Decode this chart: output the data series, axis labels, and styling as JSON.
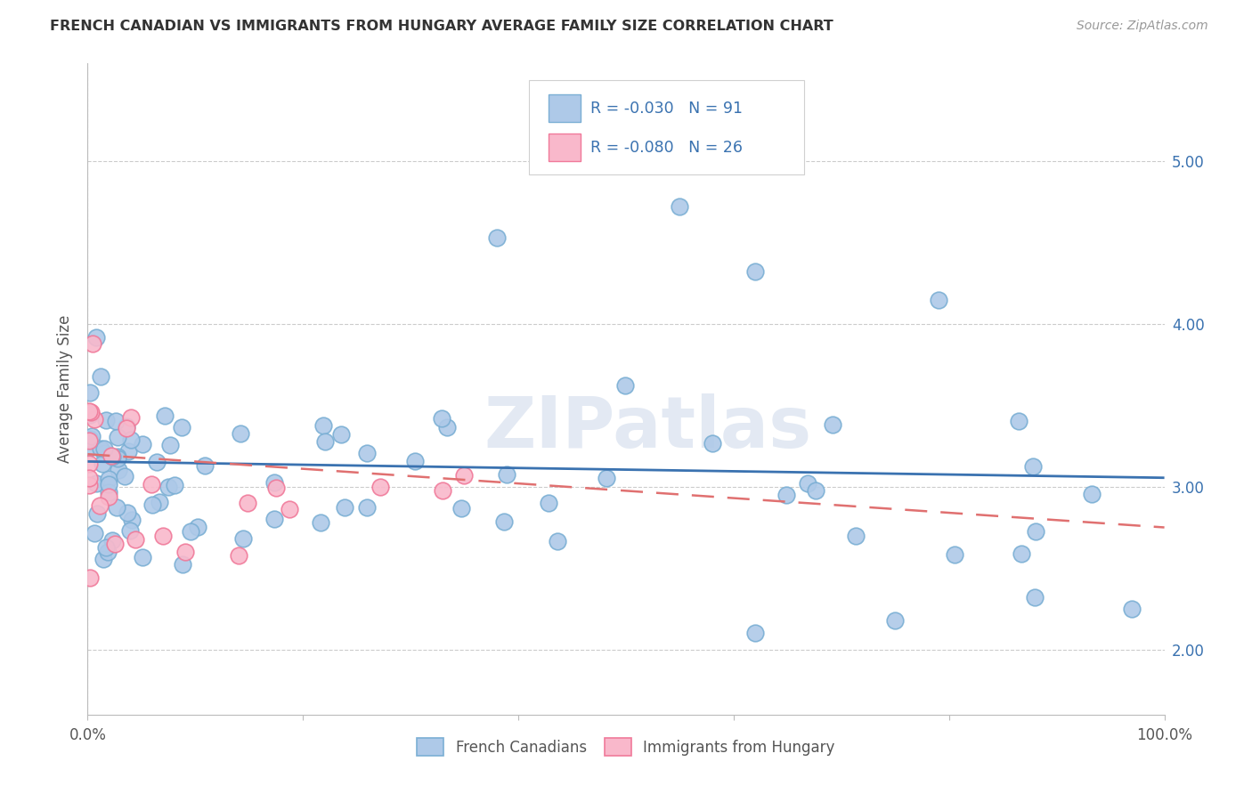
{
  "title": "FRENCH CANADIAN VS IMMIGRANTS FROM HUNGARY AVERAGE FAMILY SIZE CORRELATION CHART",
  "source": "Source: ZipAtlas.com",
  "ylabel": "Average Family Size",
  "xlim": [
    0.0,
    1.0
  ],
  "ylim": [
    1.6,
    5.6
  ],
  "ytick_vals": [
    2.0,
    3.0,
    4.0,
    5.0
  ],
  "ytick_labels": [
    "2.00",
    "3.00",
    "4.00",
    "5.00"
  ],
  "xtick_vals": [
    0.0,
    0.2,
    0.4,
    0.6,
    0.8,
    1.0
  ],
  "xtick_labels": [
    "0.0%",
    "",
    "",
    "",
    "",
    "100.0%"
  ],
  "legend_labels": [
    "French Canadians",
    "Immigrants from Hungary"
  ],
  "blue_face": "#aec9e8",
  "blue_edge": "#7bafd4",
  "pink_face": "#f9b8cb",
  "pink_edge": "#f07a9a",
  "line_blue": "#3a72b0",
  "line_pink": "#e07070",
  "r_blue": -0.03,
  "n_blue": 91,
  "r_pink": -0.08,
  "n_pink": 26,
  "watermark": "ZIPatlas",
  "bg": "#ffffff",
  "grid_color": "#cccccc",
  "text_color": "#555555",
  "title_color": "#333333",
  "source_color": "#999999",
  "right_tick_color": "#3a72b0"
}
